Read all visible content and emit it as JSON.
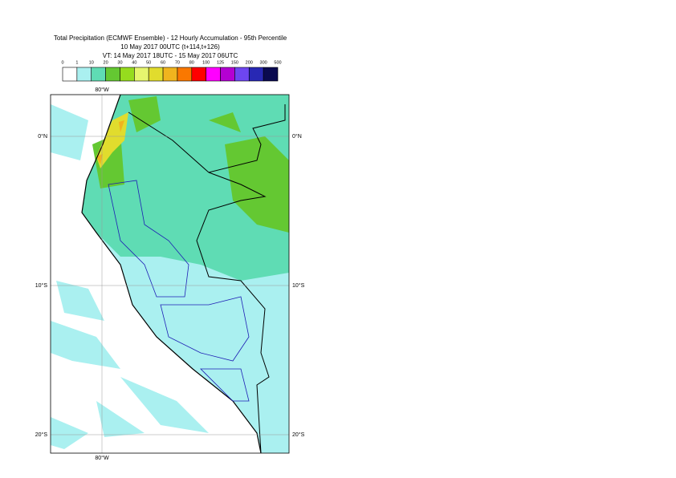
{
  "header": {
    "title": "Total Precipitation (ECMWF Ensemble) - 12 Hourly Accumulation - 95th Percentile",
    "base_time": "10 May 2017 00UTC (t+114,t+126)",
    "valid_time": "VT: 14 May 2017 18UTC - 15 May 2017 06UTC"
  },
  "legend": {
    "levels": [
      0,
      1,
      10,
      20,
      30,
      40,
      50,
      60,
      70,
      80,
      100,
      125,
      150,
      200,
      300,
      500
    ],
    "colors": [
      "#ffffff",
      "#aaf0f0",
      "#5fdcb4",
      "#64c832",
      "#96dc1e",
      "#e6f56e",
      "#e1dc2d",
      "#f0b41e",
      "#fa7800",
      "#ff0000",
      "#ff00ff",
      "#b400d2",
      "#6e46f0",
      "#2828b4",
      "#0a0a50"
    ]
  },
  "map": {
    "lon_label": "80°W",
    "lat_labels": [
      "0°N",
      "10°S",
      "20°S"
    ]
  }
}
